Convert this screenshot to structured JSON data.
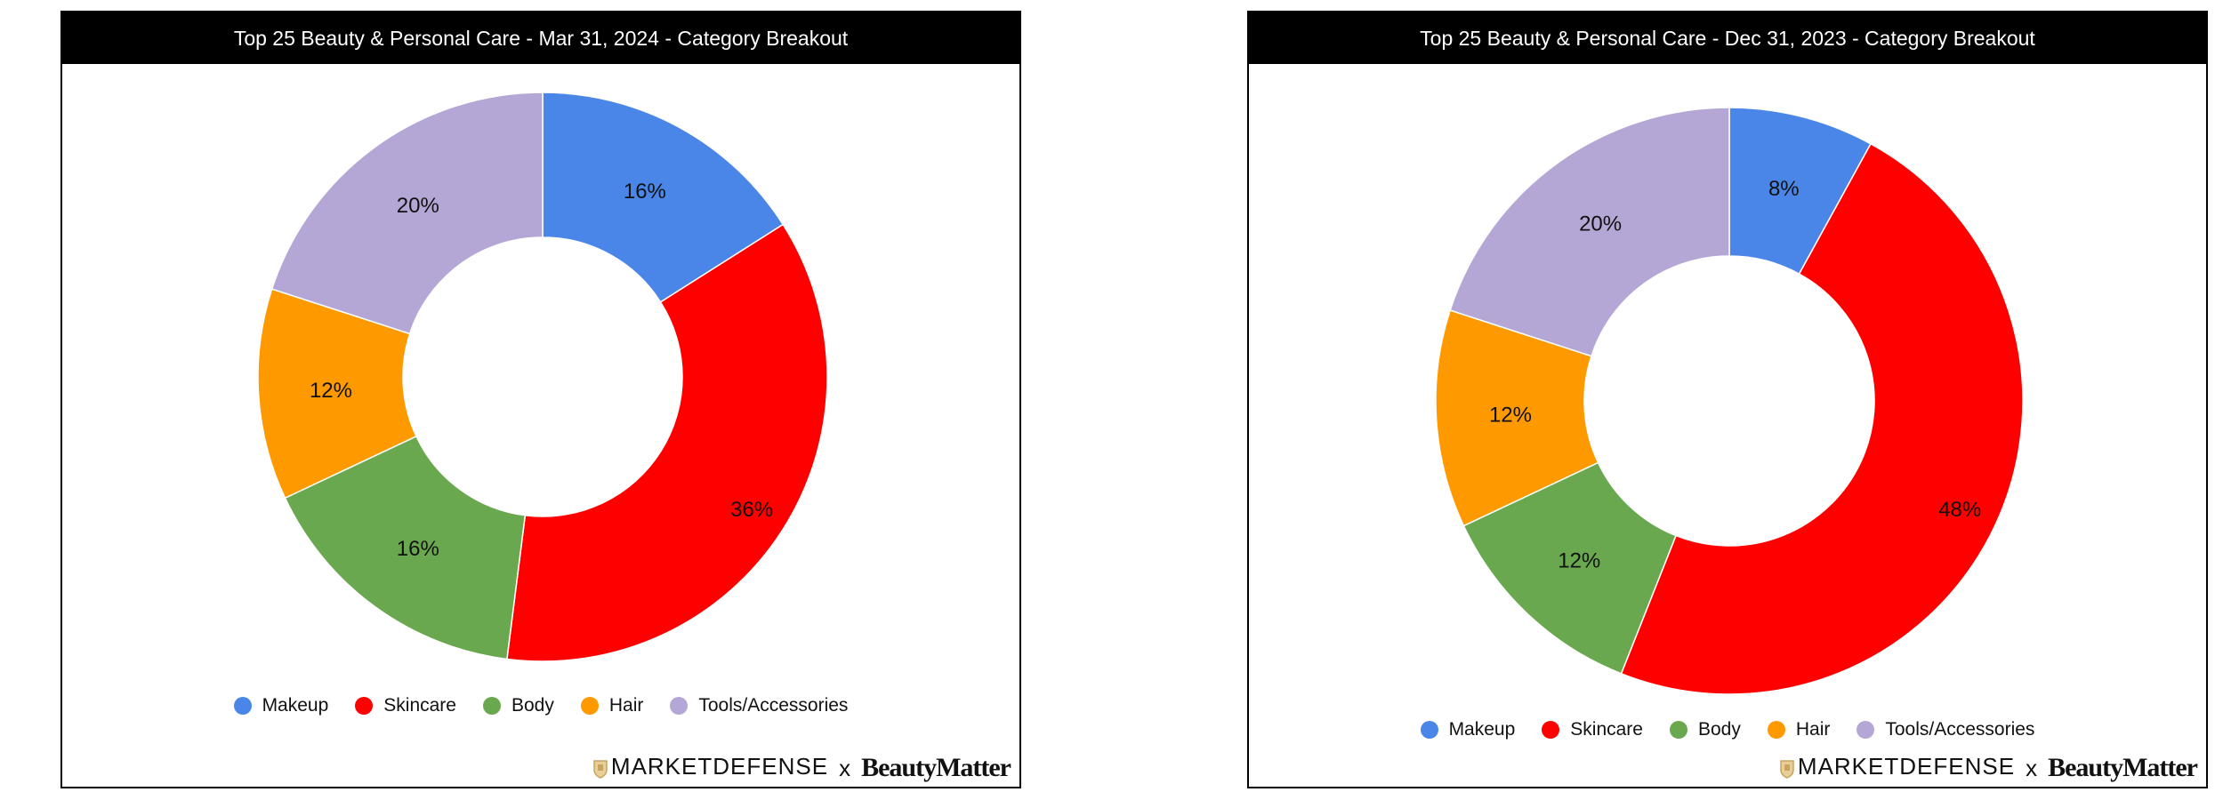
{
  "colors": {
    "Makeup": "#4a86e8",
    "Skincare": "#ff0000",
    "Body": "#6aa84f",
    "Hair": "#ff9900",
    "Tools/Accessories": "#b4a7d6"
  },
  "footer": {
    "brand_a": "MARKETDEFENSE",
    "separator": "x",
    "brand_b": "BeautyMatter"
  },
  "chart_data": [
    {
      "type": "pie",
      "title": "Top 25 Beauty & Personal Care - Mar 31, 2024 - Category Breakout",
      "categories": [
        "Makeup",
        "Skincare",
        "Body",
        "Hair",
        "Tools/Accessories"
      ],
      "values": [
        16,
        36,
        16,
        12,
        20
      ],
      "labels": [
        "16%",
        "36%",
        "16%",
        "12%",
        "20%"
      ],
      "donut": true,
      "legend": "bottom"
    },
    {
      "type": "pie",
      "title": "Top 25 Beauty & Personal Care - Dec 31, 2023 - Category Breakout",
      "categories": [
        "Makeup",
        "Skincare",
        "Body",
        "Hair",
        "Tools/Accessories"
      ],
      "values": [
        8,
        48,
        12,
        12,
        20
      ],
      "labels": [
        "8%",
        "48%",
        "12%",
        "12%",
        "20%"
      ],
      "donut": true,
      "legend": "bottom"
    }
  ]
}
